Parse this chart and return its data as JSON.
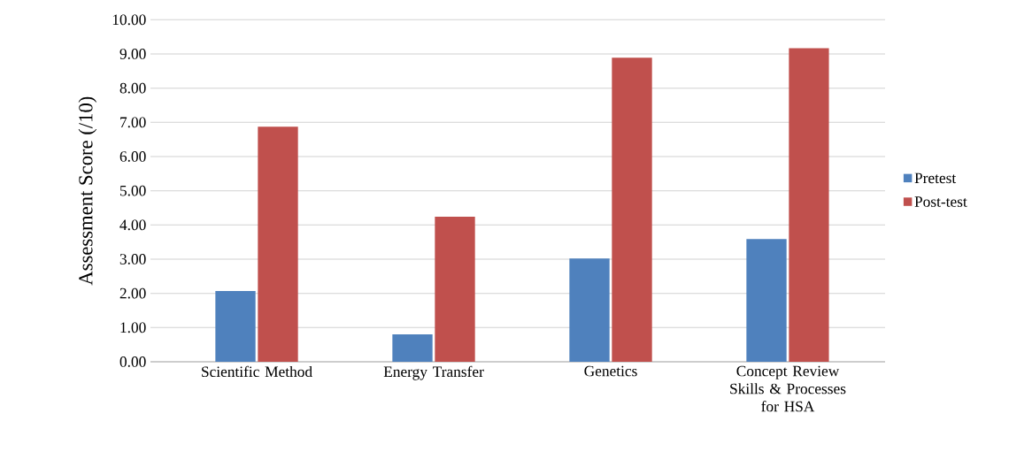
{
  "chart_data": {
    "type": "bar",
    "ylabel": "Assessment Score (/10)",
    "categories": [
      "Scientific Method",
      "Energy Transfer",
      "Genetics",
      "Concept Review Skills & Processes for HSA"
    ],
    "series": [
      {
        "name": "Pretest",
        "color": "#4f81bd",
        "values": [
          2.07,
          0.8,
          3.02,
          3.59
        ]
      },
      {
        "name": "Post-test",
        "color": "#c0504d",
        "values": [
          6.87,
          4.24,
          8.89,
          9.17
        ]
      }
    ],
    "ylim": [
      0,
      10
    ],
    "yticks": [
      {
        "value": 0,
        "label": "0.00"
      },
      {
        "value": 1,
        "label": "1.00"
      },
      {
        "value": 2,
        "label": "2.00"
      },
      {
        "value": 3,
        "label": "3.00"
      },
      {
        "value": 4,
        "label": "4.00"
      },
      {
        "value": 5,
        "label": "5.00"
      },
      {
        "value": 6,
        "label": "6.00"
      },
      {
        "value": 7,
        "label": "7.00"
      },
      {
        "value": 8,
        "label": "8.00"
      },
      {
        "value": 9,
        "label": "9.00"
      },
      {
        "value": 10,
        "label": "10.00"
      }
    ],
    "grid": "y",
    "legend": "right"
  }
}
